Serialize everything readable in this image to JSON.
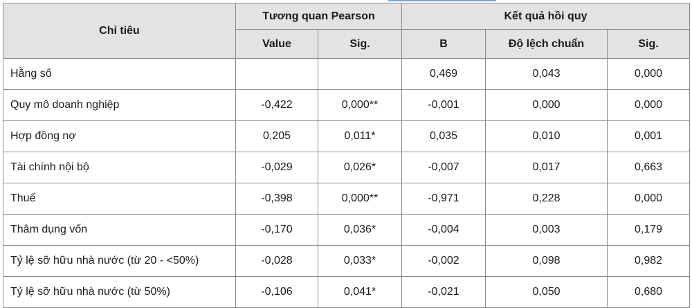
{
  "header": {
    "indicator": "Chỉ tiêu",
    "pearson_group": "Tương quan Pearson",
    "regression_group": "Kết quả hồi quy",
    "sub": [
      "Value",
      "Sig.",
      "B",
      "Độ lệch chuẩn",
      "Sig."
    ]
  },
  "rows": [
    {
      "label": "Hằng số",
      "value": "",
      "sig": "",
      "b": "0,469",
      "sd": "0,043",
      "rsig": "0,000"
    },
    {
      "label": "Quy mô doanh nghiệp",
      "value": "-0,422",
      "sig": "0,000**",
      "b": "-0,001",
      "sd": "0,000",
      "rsig": "0,000"
    },
    {
      "label": "Hợp đồng nợ",
      "value": "0,205",
      "sig": "0,011*",
      "b": "0,035",
      "sd": "0,010",
      "rsig": "0,001"
    },
    {
      "label": "Tài chính nội bộ",
      "value": "-0,029",
      "sig": "0,026*",
      "b": "-0,007",
      "sd": "0,017",
      "rsig": "0,663"
    },
    {
      "label": "Thuế",
      "value": "-0,398",
      "sig": "0,000**",
      "b": "-0,971",
      "sd": "0,228",
      "rsig": "0,000"
    },
    {
      "label": "Thâm dụng vốn",
      "value": "-0,170",
      "sig": "0,036*",
      "b": "-0,004",
      "sd": "0,003",
      "rsig": "0,179"
    },
    {
      "label": "Tỷ lệ sỡ hữu nhà nước (từ 20 - <50%)",
      "value": "-0,028",
      "sig": "0,033*",
      "b": "-0,002",
      "sd": "0,098",
      "rsig": "0,982"
    },
    {
      "label": "Tỷ lệ sỡ hữu nhà nước (từ 50%)",
      "value": "-0,106",
      "sig": "0,041*",
      "b": "-0,021",
      "sd": "0,050",
      "rsig": "0,680"
    }
  ]
}
